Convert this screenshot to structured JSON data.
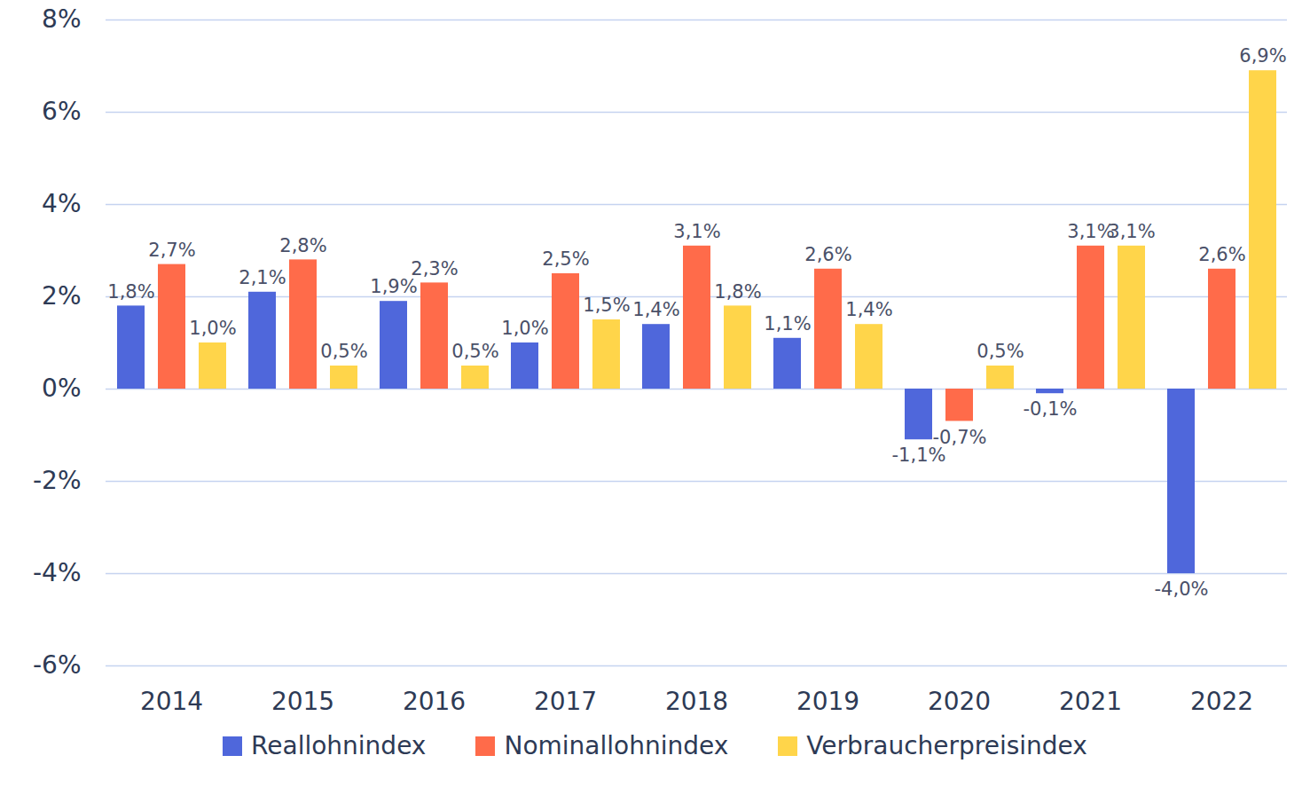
{
  "chart_data": {
    "type": "bar",
    "categories": [
      "2014",
      "2015",
      "2016",
      "2017",
      "2018",
      "2019",
      "2020",
      "2021",
      "2022"
    ],
    "series": [
      {
        "name": "Reallohnindex",
        "color": "#4f67db",
        "values": [
          1.8,
          2.1,
          1.9,
          1.0,
          1.4,
          1.1,
          -1.1,
          -0.1,
          -4.0
        ],
        "value_labels": [
          "1,8%",
          "2,1%",
          "1,9%",
          "1,0%",
          "1,4%",
          "1,1%",
          "-1,1%",
          "-0,1%",
          "-4,0%"
        ]
      },
      {
        "name": "Nominallohnindex",
        "color": "#ff6b4a",
        "values": [
          2.7,
          2.8,
          2.3,
          2.5,
          3.1,
          2.6,
          -0.7,
          3.1,
          2.6
        ],
        "value_labels": [
          "2,7%",
          "2,8%",
          "2,3%",
          "2,5%",
          "3,1%",
          "2,6%",
          "-0,7%",
          "3,1%",
          "2,6%"
        ]
      },
      {
        "name": "Verbraucherpreisindex",
        "color": "#ffd54a",
        "values": [
          1.0,
          0.5,
          0.5,
          1.5,
          1.8,
          1.4,
          0.5,
          3.1,
          6.9
        ],
        "value_labels": [
          "1,0%",
          "0,5%",
          "0,5%",
          "1,5%",
          "1,8%",
          "1,4%",
          "0,5%",
          "3,1%",
          "6,9%"
        ]
      }
    ],
    "ylim": [
      -6,
      8
    ],
    "yticks": [
      {
        "value": -6,
        "label": "-6%"
      },
      {
        "value": -4,
        "label": "-4%"
      },
      {
        "value": -2,
        "label": "-2%"
      },
      {
        "value": 0,
        "label": "0%"
      },
      {
        "value": 2,
        "label": "2%"
      },
      {
        "value": 4,
        "label": "4%"
      },
      {
        "value": 6,
        "label": "6%"
      },
      {
        "value": 8,
        "label": "8%"
      }
    ],
    "grid": true,
    "legend": "bottom",
    "data_labels": true
  }
}
